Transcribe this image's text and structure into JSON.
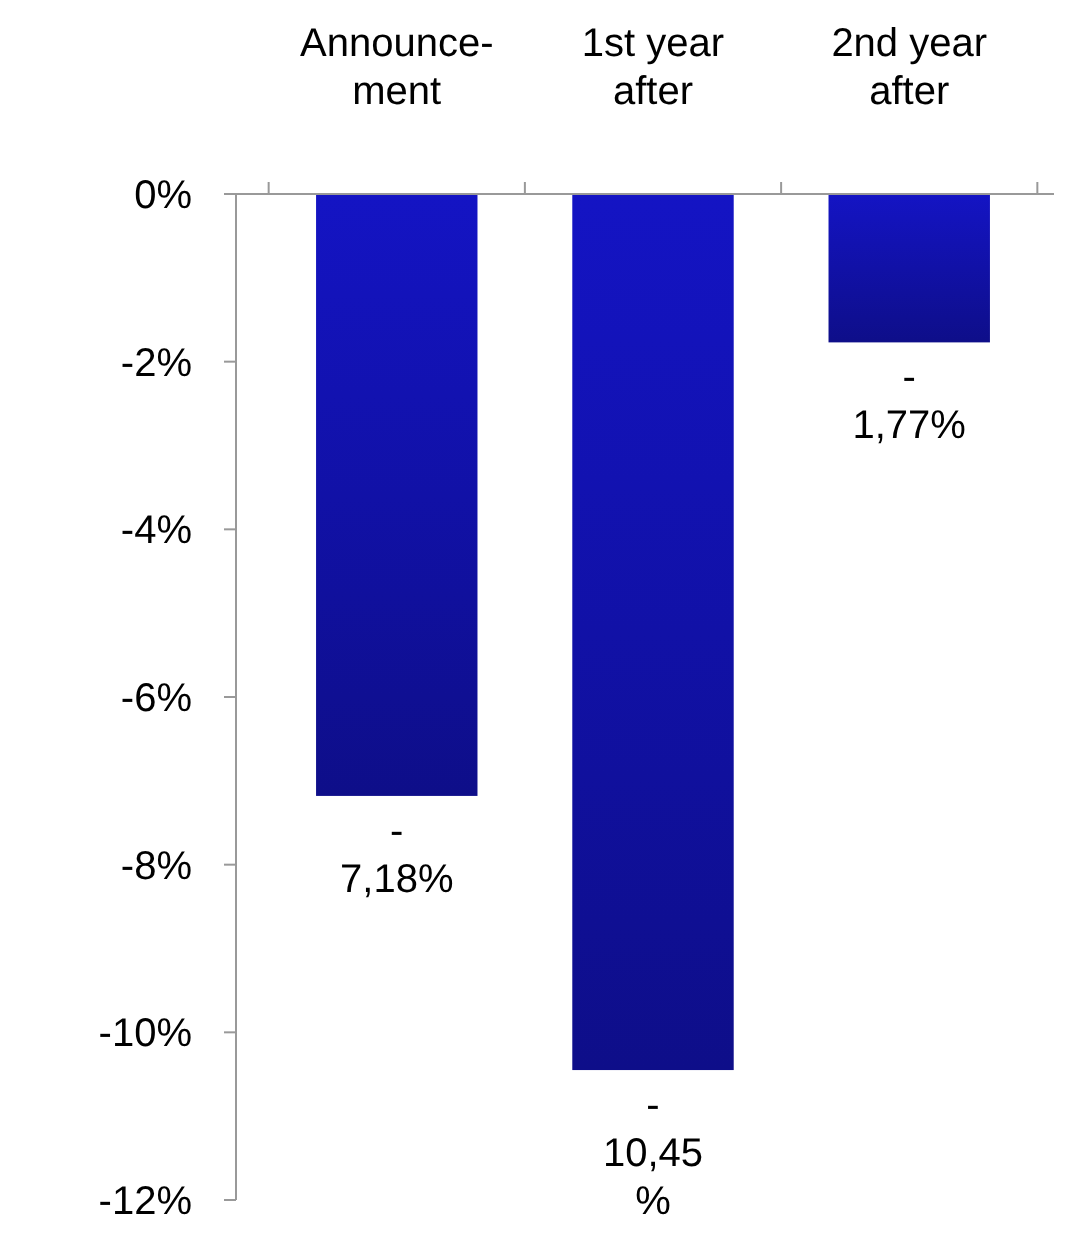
{
  "chart_data": {
    "type": "bar",
    "categories": [
      "Announce-\nment",
      "1st year\nafter",
      "2nd year\nafter"
    ],
    "values": [
      -7.18,
      -10.45,
      -1.77
    ],
    "value_labels": [
      "-\n7,18%",
      "-\n10,45\n%",
      "-\n1,77%"
    ],
    "color": "#1414c4",
    "ylim": [
      -12,
      0
    ],
    "yticks": [
      {
        "value": 0,
        "label": "0%"
      },
      {
        "value": -2,
        "label": "-2%"
      },
      {
        "value": -4,
        "label": "-4%"
      },
      {
        "value": -6,
        "label": "-6%"
      },
      {
        "value": -8,
        "label": "-8%"
      },
      {
        "value": -10,
        "label": "-10%"
      },
      {
        "value": -12,
        "label": "-12%"
      }
    ],
    "orientation": "vertical"
  }
}
